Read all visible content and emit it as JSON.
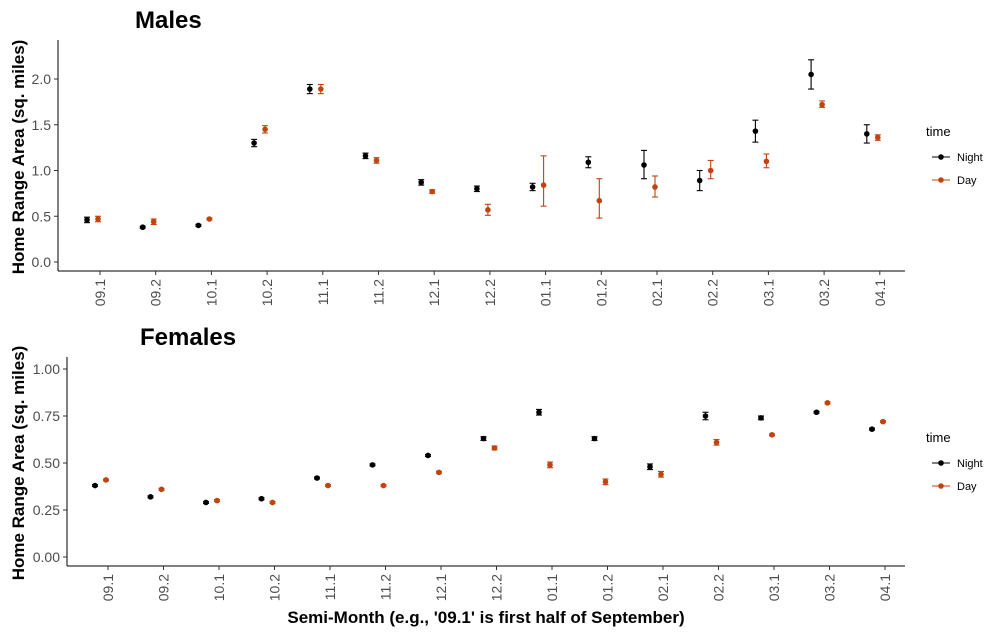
{
  "xlabel": "Semi-Month (e.g., '09.1' is first half of September)",
  "legend": {
    "title": "time",
    "items": [
      {
        "label": "Night",
        "color": "#000000"
      },
      {
        "label": "Day",
        "color": "#c1440e"
      }
    ],
    "placement": "right"
  },
  "chart_data": [
    {
      "type": "scatter",
      "title": "Males",
      "xlabel": "",
      "ylabel": "Home Range Area (sq. miles)",
      "ylim": [
        -0.1,
        2.4
      ],
      "yticks": [
        0.0,
        0.5,
        1.0,
        1.5,
        2.0
      ],
      "ytick_labels": [
        "0.0",
        "0.5",
        "1.0",
        "1.5",
        "2.0"
      ],
      "grid": false,
      "categories": [
        "09.1",
        "09.2",
        "10.1",
        "10.2",
        "11.1",
        "11.2",
        "12.1",
        "12.2",
        "01.1",
        "01.2",
        "02.1",
        "02.2",
        "03.1",
        "03.2",
        "04.1"
      ],
      "series": [
        {
          "name": "Night",
          "color": "#000000",
          "values": [
            0.46,
            0.38,
            0.4,
            1.3,
            1.89,
            1.16,
            0.87,
            0.8,
            0.82,
            1.09,
            1.06,
            0.89,
            1.43,
            2.05,
            1.4
          ],
          "lower": [
            0.43,
            0.37,
            0.39,
            1.26,
            1.84,
            1.13,
            0.84,
            0.77,
            0.78,
            1.03,
            0.91,
            0.78,
            1.31,
            1.89,
            1.3
          ],
          "upper": [
            0.49,
            0.39,
            0.41,
            1.34,
            1.94,
            1.19,
            0.9,
            0.83,
            0.86,
            1.15,
            1.22,
            1.0,
            1.55,
            2.21,
            1.5
          ]
        },
        {
          "name": "Day",
          "color": "#c1440e",
          "values": [
            0.47,
            0.44,
            0.47,
            1.45,
            1.89,
            1.11,
            0.77,
            0.57,
            0.84,
            0.67,
            0.82,
            1.0,
            1.1,
            1.72,
            1.36
          ],
          "lower": [
            0.44,
            0.41,
            0.46,
            1.41,
            1.84,
            1.08,
            0.75,
            0.51,
            0.61,
            0.48,
            0.71,
            0.91,
            1.03,
            1.69,
            1.33
          ],
          "upper": [
            0.5,
            0.47,
            0.48,
            1.49,
            1.94,
            1.14,
            0.79,
            0.63,
            1.16,
            0.91,
            0.94,
            1.11,
            1.18,
            1.76,
            1.39
          ]
        }
      ]
    },
    {
      "type": "scatter",
      "title": "Females",
      "xlabel": "Semi-Month (e.g., '09.1' is first half of September)",
      "ylabel": "Home Range Area (sq. miles)",
      "ylim": [
        -0.04,
        1.05
      ],
      "yticks": [
        0.0,
        0.25,
        0.5,
        0.75,
        1.0
      ],
      "ytick_labels": [
        "0.00",
        "0.25",
        "0.50",
        "0.75",
        "1.00"
      ],
      "grid": false,
      "categories": [
        "09.1",
        "09.2",
        "10.1",
        "10.2",
        "11.1",
        "11.2",
        "12.1",
        "12.2",
        "01.1",
        "01.2",
        "02.1",
        "02.2",
        "03.1",
        "03.2",
        "04.1"
      ],
      "series": [
        {
          "name": "Night",
          "color": "#000000",
          "values": [
            0.38,
            0.32,
            0.29,
            0.31,
            0.42,
            0.49,
            0.54,
            0.63,
            0.77,
            0.63,
            0.48,
            0.75,
            0.74,
            0.77,
            0.68
          ],
          "lower": [
            0.375,
            0.315,
            0.285,
            0.305,
            0.415,
            0.485,
            0.535,
            0.62,
            0.755,
            0.62,
            0.465,
            0.73,
            0.73,
            0.765,
            0.675
          ],
          "upper": [
            0.385,
            0.325,
            0.295,
            0.315,
            0.425,
            0.495,
            0.545,
            0.64,
            0.785,
            0.64,
            0.495,
            0.77,
            0.75,
            0.775,
            0.685
          ]
        },
        {
          "name": "Day",
          "color": "#c1440e",
          "values": [
            0.41,
            0.36,
            0.3,
            0.29,
            0.38,
            0.38,
            0.45,
            0.58,
            0.49,
            0.4,
            0.44,
            0.61,
            0.65,
            0.82,
            0.72
          ],
          "lower": [
            0.405,
            0.355,
            0.295,
            0.285,
            0.375,
            0.375,
            0.445,
            0.57,
            0.475,
            0.385,
            0.425,
            0.595,
            0.645,
            0.815,
            0.715
          ],
          "upper": [
            0.415,
            0.365,
            0.305,
            0.295,
            0.385,
            0.385,
            0.455,
            0.59,
            0.505,
            0.415,
            0.455,
            0.625,
            0.655,
            0.825,
            0.725
          ]
        }
      ]
    }
  ]
}
